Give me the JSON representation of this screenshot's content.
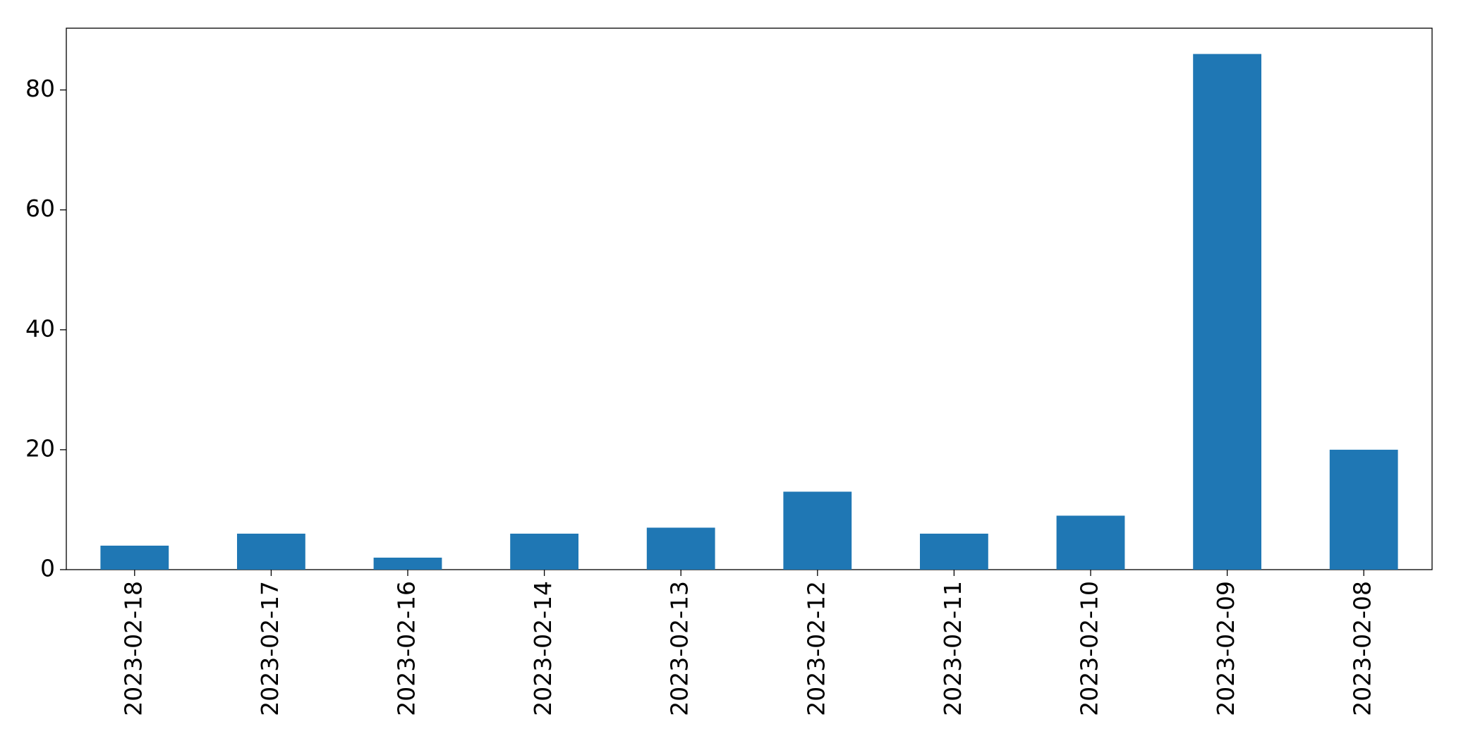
{
  "chart_data": {
    "type": "bar",
    "categories": [
      "2023-02-18",
      "2023-02-17",
      "2023-02-16",
      "2023-02-14",
      "2023-02-13",
      "2023-02-12",
      "2023-02-11",
      "2023-02-10",
      "2023-02-09",
      "2023-02-08"
    ],
    "values": [
      4,
      6,
      2,
      6,
      7,
      13,
      6,
      9,
      86,
      20
    ],
    "color": "#1f77b4",
    "ylim": [
      0,
      90.3
    ],
    "yticks": [
      0,
      20,
      40,
      60,
      80
    ],
    "grid": false
  }
}
